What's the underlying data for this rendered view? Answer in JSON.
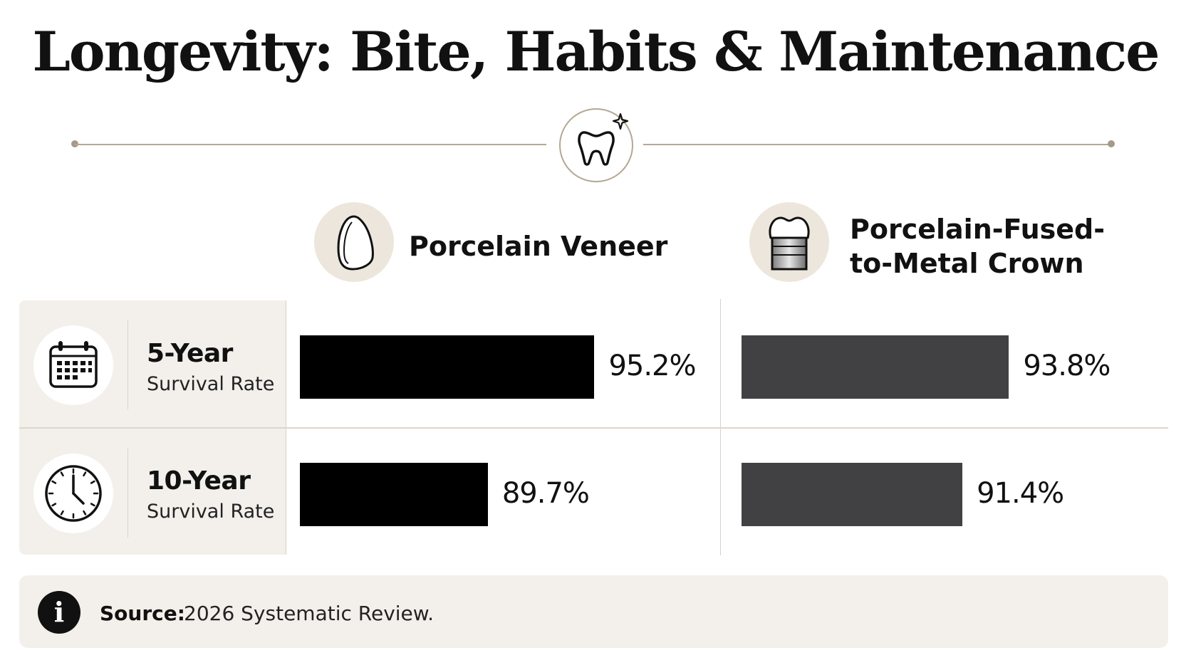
{
  "chart_data": {
    "type": "bar",
    "title": "Longevity: Bite, Habits & Maintenance",
    "categories": [
      "5-Year Survival Rate",
      "10-Year Survival Rate"
    ],
    "series": [
      {
        "name": "Porcelain Veneer",
        "values": [
          95.2,
          89.7
        ],
        "value_labels": [
          "95.2%",
          "89.7%"
        ],
        "color": "#000000"
      },
      {
        "name": "Porcelain-Fused-to-Metal Crown",
        "values": [
          93.8,
          91.4
        ],
        "value_labels": [
          "93.8%",
          "91.4%"
        ],
        "color": "#414144"
      }
    ],
    "grid": false
  },
  "columns": [
    {
      "title_lines": [
        "Porcelain Veneer"
      ],
      "icon": "veneer-icon"
    },
    {
      "title_lines": [
        "Porcelain-Fused-",
        "to-Metal Crown"
      ],
      "icon": "crown-icon"
    }
  ],
  "rows": [
    {
      "title": "5-Year",
      "subtitle": "Survival Rate",
      "icon": "calendar-icon"
    },
    {
      "title": "10-Year",
      "subtitle": "Survival Rate",
      "icon": "clock-icon"
    }
  ],
  "header_icon": "tooth-sparkle-icon",
  "source": {
    "label": "Source:",
    "text": "2026 Systematic Review."
  },
  "colors": {
    "accent": "#b4a794",
    "panel": "#f3f0eb",
    "icon_bg": "#ede6dc"
  }
}
